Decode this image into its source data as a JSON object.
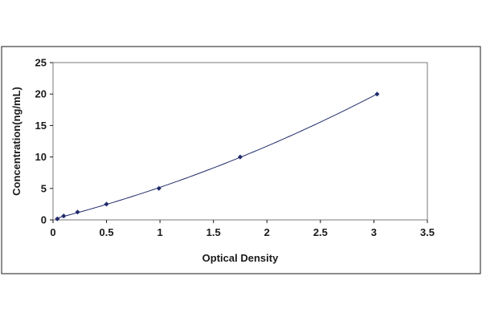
{
  "chart_data": {
    "type": "scatter",
    "title": "",
    "xlabel": "Optical Density",
    "ylabel": "Concentration(ng/mL)",
    "xlim": [
      0,
      3.5
    ],
    "ylim": [
      0,
      25
    ],
    "xticks": [
      "0",
      "0.5",
      "1",
      "1.5",
      "2",
      "2.5",
      "3",
      "3.5"
    ],
    "yticks": [
      "0",
      "5",
      "10",
      "15",
      "20",
      "25"
    ],
    "grid": false,
    "legend": "none",
    "series": [
      {
        "x": [
          0.04,
          0.1,
          0.23,
          0.5,
          0.99,
          1.75,
          3.03
        ],
        "y": [
          0.156,
          0.625,
          1.25,
          2.5,
          5,
          10,
          20
        ],
        "trendline": "polynomial"
      }
    ],
    "colors": {
      "marker": "#1f2a6b",
      "curve": "#1f2a6b"
    }
  }
}
